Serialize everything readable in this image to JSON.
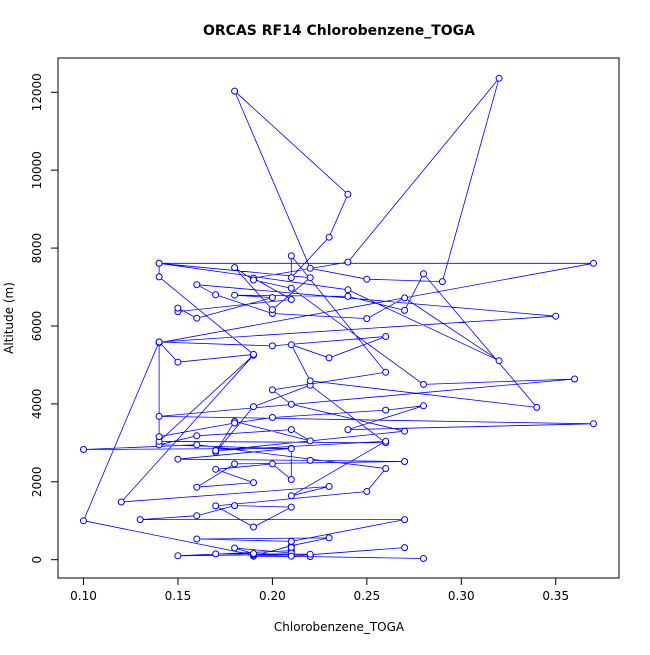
{
  "chart_data": {
    "type": "line",
    "title": "ORCAS RF14 Chlorobenzene_TOGA",
    "xlabel": "Chlorobenzene_TOGA",
    "ylabel": "Altitude (m)",
    "xlim": [
      0.0865,
      0.3835
    ],
    "ylim": [
      -470,
      12880
    ],
    "xticks": [
      0.1,
      0.15,
      0.2,
      0.25,
      0.3,
      0.35
    ],
    "xtick_labels": [
      "0.10",
      "0.15",
      "0.20",
      "0.25",
      "0.30",
      "0.35"
    ],
    "yticks": [
      0,
      2000,
      4000,
      6000,
      8000,
      10000,
      12000
    ],
    "ytick_labels": [
      "0",
      "2000",
      "4000",
      "6000",
      "8000",
      "10000",
      "12000"
    ],
    "grid": false,
    "series_color": "#0000ff",
    "series": [
      {
        "x": [
          0.28,
          0.22,
          0.19,
          0.21,
          0.23,
          0.16,
          0.21,
          0.27,
          0.13,
          0.16,
          0.18,
          0.21,
          0.19,
          0.17,
          0.25,
          0.26,
          0.16,
          0.1,
          0.21,
          0.15,
          0.22,
          0.27,
          0.18,
          0.16,
          0.19,
          0.17,
          0.2,
          0.21,
          0.21,
          0.14,
          0.16,
          0.21,
          0.22,
          0.18,
          0.17,
          0.19,
          0.22,
          0.26,
          0.14,
          0.19,
          0.12,
          0.23,
          0.21,
          0.26,
          0.17,
          0.27,
          0.21,
          0.2,
          0.26,
          0.21,
          0.21,
          0.23,
          0.24,
          0.18,
          0.22,
          0.25,
          0.29,
          0.32,
          0.24,
          0.19,
          0.21,
          0.15,
          0.15,
          0.16,
          0.2,
          0.18,
          0.24,
          0.27,
          0.28,
          0.34,
          0.22,
          0.21,
          0.23,
          0.26,
          0.2,
          0.14,
          0.35,
          0.16,
          0.17,
          0.2,
          0.25,
          0.27,
          0.32,
          0.24,
          0.14,
          0.22,
          0.2,
          0.18,
          0.19,
          0.21,
          0.28,
          0.36,
          0.14,
          0.37,
          0.24,
          0.28,
          0.26,
          0.2,
          0.18,
          0.14,
          0.14,
          0.37,
          0.14,
          0.14,
          0.19,
          0.15,
          0.14,
          0.1,
          0.19,
          0.19,
          0.22,
          0.15,
          0.21,
          0.21,
          0.21,
          0.18,
          0.19,
          0.17,
          0.21,
          0.27
        ],
        "y": [
          30,
          80,
          90,
          360,
          560,
          530,
          470,
          1030,
          1030,
          1130,
          1390,
          1350,
          840,
          1380,
          1750,
          2340,
          2950,
          2830,
          2860,
          2580,
          2550,
          2520,
          2460,
          1860,
          1980,
          2320,
          2460,
          2060,
          2850,
          2950,
          3180,
          3340,
          3050,
          3550,
          2760,
          3930,
          4480,
          3000,
          3040,
          5250,
          1480,
          1880,
          1640,
          3040,
          2800,
          3300,
          3990,
          4360,
          4810,
          7800,
          7240,
          8280,
          9380,
          12030,
          7480,
          7200,
          7140,
          12360,
          7640,
          7230,
          6680,
          6370,
          6460,
          6200,
          6730,
          6790,
          6760,
          6400,
          7340,
          3910,
          4590,
          5520,
          5180,
          5730,
          5490,
          5590,
          6250,
          7060,
          6800,
          6320,
          6190,
          6720,
          5110,
          6930,
          7610,
          7240,
          6420,
          7500,
          7180,
          6970,
          4500,
          4640,
          3680,
          3490,
          3340,
          3950,
          3840,
          3650,
          3510,
          3160,
          5570,
          7610,
          7610,
          7260,
          5270,
          5070,
          5590,
          1000,
          120,
          150,
          140,
          100,
          230,
          310,
          170,
          300,
          160,
          150,
          90,
          310
        ]
      }
    ]
  }
}
